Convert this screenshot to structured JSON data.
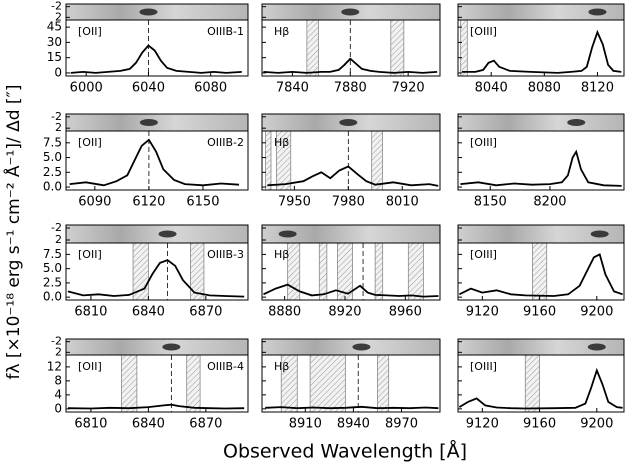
{
  "xlabel": "Observed Wavelength [Å]",
  "ylabel": "fλ [×10⁻¹⁸ erg s⁻¹ cm⁻² Å⁻¹]/ Δd [″]",
  "chart_data": [
    {
      "type": "line",
      "line_label": "[OII]",
      "id_label": "OIIIB-1",
      "xlim": [
        5987,
        6104
      ],
      "xticks": [
        6000,
        6040,
        6080
      ],
      "ylim": [
        -3,
        52
      ],
      "yticks": [
        0,
        15,
        30,
        45
      ],
      "ytick_labels": true,
      "strip_ylim": [
        -3,
        3
      ],
      "strip_yticks": [
        -2,
        2
      ],
      "shaded": [],
      "dashed": [
        6040
      ],
      "x": [
        5990,
        5998,
        6006,
        6014,
        6022,
        6028,
        6032,
        6036,
        6040,
        6044,
        6048,
        6052,
        6058,
        6066,
        6074,
        6082,
        6090,
        6100
      ],
      "values": [
        0,
        1,
        0,
        1,
        2,
        4,
        10,
        20,
        27,
        22,
        12,
        5,
        2,
        1,
        0,
        1,
        0,
        1
      ]
    },
    {
      "type": "line",
      "line_label": "Hβ",
      "xlim": [
        7819,
        7942
      ],
      "xticks": [
        7840,
        7880,
        7920
      ],
      "ylim": [
        -3,
        52
      ],
      "yticks": [
        0,
        15,
        30,
        45
      ],
      "ytick_labels": false,
      "strip_ylim": [
        -3,
        3
      ],
      "strip_yticks": [
        -2,
        2
      ],
      "shaded": [
        [
          7850,
          7858
        ],
        [
          7908,
          7917
        ]
      ],
      "dashed": [
        7880
      ],
      "x": [
        7820,
        7830,
        7840,
        7850,
        7860,
        7866,
        7872,
        7876,
        7880,
        7884,
        7888,
        7894,
        7900,
        7910,
        7920,
        7930,
        7940
      ],
      "values": [
        1,
        0,
        1,
        0,
        1,
        1,
        3,
        8,
        14,
        9,
        4,
        2,
        1,
        0,
        1,
        0,
        1
      ]
    },
    {
      "type": "line",
      "line_label": "[OIII]",
      "xlim": [
        8015,
        8140
      ],
      "xticks": [
        8040,
        8080,
        8120
      ],
      "ylim": [
        -3,
        52
      ],
      "yticks": [
        0,
        15,
        30,
        45
      ],
      "ytick_labels": false,
      "strip_ylim": [
        -3,
        3
      ],
      "strip_yticks": [
        -2,
        2
      ],
      "shaded": [
        [
          8017,
          8022
        ]
      ],
      "dashed": [],
      "x": [
        8018,
        8028,
        8034,
        8038,
        8042,
        8046,
        8054,
        8070,
        8090,
        8100,
        8108,
        8112,
        8116,
        8120,
        8124,
        8128,
        8132,
        8138
      ],
      "values": [
        1,
        1,
        3,
        10,
        12,
        6,
        2,
        1,
        0,
        1,
        2,
        6,
        25,
        40,
        28,
        8,
        2,
        1
      ]
    },
    {
      "type": "line",
      "line_label": "[OII]",
      "id_label": "OIIIB-2",
      "xlim": [
        6074,
        6175
      ],
      "xticks": [
        6090,
        6120,
        6150
      ],
      "ylim": [
        -0.5,
        9.5
      ],
      "yticks": [
        {
          "value": 0,
          "label": "0.0"
        },
        2.5,
        {
          "value": 5,
          "label": "5.0"
        },
        7.5
      ],
      "ytick_labels": true,
      "strip_ylim": [
        -3,
        3
      ],
      "strip_yticks": [
        -2,
        2
      ],
      "shaded": [],
      "dashed": [
        6120
      ],
      "x": [
        6076,
        6085,
        6095,
        6102,
        6108,
        6112,
        6116,
        6120,
        6124,
        6128,
        6134,
        6140,
        6150,
        6160,
        6170
      ],
      "values": [
        0.5,
        0.8,
        0.3,
        1.0,
        2.0,
        4.5,
        7.0,
        8.0,
        6.0,
        3.0,
        1.2,
        0.5,
        0.3,
        0.6,
        0.4
      ]
    },
    {
      "type": "line",
      "line_label": "Hβ",
      "xlim": [
        7932,
        8031
      ],
      "xticks": [
        7950,
        7980,
        8010
      ],
      "ylim": [
        -0.5,
        9.5
      ],
      "yticks": [
        {
          "value": 0,
          "label": "0.0"
        },
        2.5,
        {
          "value": 5,
          "label": "5.0"
        },
        7.5
      ],
      "ytick_labels": false,
      "strip_ylim": [
        -3,
        3
      ],
      "strip_yticks": [
        -2,
        2
      ],
      "shaded": [
        [
          7934,
          7937
        ],
        [
          7940,
          7948
        ],
        [
          7993,
          7999
        ]
      ],
      "dashed": [
        7980
      ],
      "x": [
        7935,
        7945,
        7955,
        7960,
        7965,
        7970,
        7975,
        7980,
        7985,
        7990,
        7995,
        8005,
        8015,
        8025,
        8030
      ],
      "values": [
        0.3,
        0.5,
        1.0,
        1.8,
        2.5,
        1.5,
        2.8,
        3.5,
        2.2,
        1.0,
        0.4,
        0.8,
        0.3,
        0.5,
        0.2
      ]
    },
    {
      "type": "line",
      "line_label": "[OIII]",
      "xlim": [
        8123,
        8262
      ],
      "xticks": [
        8150,
        8200
      ],
      "ylim": [
        -0.5,
        9.5
      ],
      "yticks": [
        {
          "value": 0,
          "label": "0.0"
        },
        2.5,
        {
          "value": 5,
          "label": "5.0"
        },
        7.5
      ],
      "ytick_labels": false,
      "strip_ylim": [
        -3,
        3
      ],
      "strip_yticks": [
        -2,
        2
      ],
      "shaded": [],
      "dashed": [],
      "x": [
        8125,
        8140,
        8155,
        8170,
        8185,
        8200,
        8210,
        8215,
        8219,
        8222,
        8226,
        8232,
        8245,
        8260
      ],
      "values": [
        0.5,
        0.8,
        0.3,
        0.6,
        0.4,
        0.5,
        0.8,
        2.0,
        5.0,
        6.0,
        3.0,
        0.8,
        0.3,
        0.2
      ]
    },
    {
      "type": "line",
      "line_label": "[OII]",
      "id_label": "OIIIB-3",
      "xlim": [
        6797,
        6892
      ],
      "xticks": [
        6810,
        6840,
        6870
      ],
      "ylim": [
        -0.5,
        9.5
      ],
      "yticks": [
        {
          "value": 0,
          "label": "0.0"
        },
        2.5,
        {
          "value": 5,
          "label": "5.0"
        },
        7.5
      ],
      "ytick_labels": true,
      "strip_ylim": [
        -3,
        3
      ],
      "strip_yticks": [
        -2,
        2
      ],
      "shaded": [
        [
          6832,
          6840
        ],
        [
          6862,
          6869
        ]
      ],
      "dashed": [
        6850
      ],
      "x": [
        6798,
        6806,
        6814,
        6822,
        6830,
        6838,
        6842,
        6846,
        6850,
        6854,
        6858,
        6864,
        6872,
        6880,
        6890
      ],
      "values": [
        1.0,
        0.3,
        0.5,
        0.2,
        0.4,
        1.5,
        4.0,
        6.0,
        6.5,
        5.5,
        3.0,
        0.8,
        0.3,
        0.2,
        0.1
      ]
    },
    {
      "type": "line",
      "line_label": "Hβ",
      "xlim": [
        8865,
        8983
      ],
      "xticks": [
        8880,
        8920,
        8960
      ],
      "ylim": [
        -0.5,
        9.5
      ],
      "yticks": [
        {
          "value": 0,
          "label": "0.0"
        },
        2.5,
        {
          "value": 5,
          "label": "5.0"
        },
        7.5
      ],
      "ytick_labels": false,
      "strip_ylim": [
        -3,
        3
      ],
      "strip_yticks": [
        -2,
        2
      ],
      "shaded": [
        [
          8882,
          8890
        ],
        [
          8903,
          8908
        ],
        [
          8915,
          8925
        ],
        [
          8940,
          8945
        ],
        [
          8962,
          8972
        ]
      ],
      "dashed": [
        8932
      ],
      "x": [
        8866,
        8874,
        8882,
        8890,
        8898,
        8906,
        8914,
        8922,
        8930,
        8935,
        8940,
        8948,
        8956,
        8964,
        8972,
        8982
      ],
      "values": [
        0.5,
        1.5,
        2.2,
        1.0,
        0.3,
        0.5,
        1.2,
        0.6,
        2.0,
        0.8,
        0.4,
        0.3,
        0.2,
        0.3,
        0.1,
        0.2
      ]
    },
    {
      "type": "line",
      "line_label": "[OIII]",
      "xlim": [
        9103,
        9219
      ],
      "xticks": [
        9120,
        9160,
        9200
      ],
      "ylim": [
        -0.5,
        9.5
      ],
      "yticks": [
        {
          "value": 0,
          "label": "0.0"
        },
        2.5,
        {
          "value": 5,
          "label": "5.0"
        },
        7.5
      ],
      "ytick_labels": false,
      "strip_ylim": [
        -3,
        3
      ],
      "strip_yticks": [
        -2,
        2
      ],
      "shaded": [
        [
          9155,
          9165
        ]
      ],
      "dashed": [],
      "x": [
        9104,
        9112,
        9120,
        9130,
        9140,
        9150,
        9170,
        9180,
        9188,
        9194,
        9198,
        9202,
        9206,
        9212,
        9218
      ],
      "values": [
        0.5,
        1.5,
        0.8,
        1.2,
        0.5,
        0.3,
        0.2,
        0.5,
        2.0,
        5.0,
        7.0,
        7.5,
        4.0,
        1.0,
        0.5
      ]
    },
    {
      "type": "line",
      "line_label": "[OII]",
      "id_label": "OIIIB-4",
      "xlim": [
        6797,
        6892
      ],
      "xticks": [
        6810,
        6840,
        6870
      ],
      "ylim": [
        -0.9,
        15.4
      ],
      "yticks": [
        0,
        4,
        8,
        12
      ],
      "ytick_labels": true,
      "strip_ylim": [
        -3,
        3
      ],
      "strip_yticks": [
        -2,
        2
      ],
      "shaded": [
        [
          6826,
          6834
        ],
        [
          6860,
          6867
        ]
      ],
      "dashed": [
        6852
      ],
      "x": [
        6798,
        6810,
        6820,
        6830,
        6840,
        6848,
        6852,
        6856,
        6864,
        6872,
        6880,
        6890
      ],
      "values": [
        0.2,
        0.1,
        0.3,
        0.2,
        0.5,
        1.0,
        1.2,
        0.8,
        0.3,
        0.2,
        0.1,
        0.2
      ]
    },
    {
      "type": "line",
      "line_label": "Hβ",
      "xlim": [
        8883,
        8994
      ],
      "xticks": [
        8910,
        8940,
        8970
      ],
      "ylim": [
        -0.9,
        15.4
      ],
      "yticks": [
        0,
        4,
        8,
        12
      ],
      "ytick_labels": false,
      "strip_ylim": [
        -3,
        3
      ],
      "strip_yticks": [
        -2,
        2
      ],
      "shaded": [
        [
          8895,
          8905
        ],
        [
          8913,
          8935
        ],
        [
          8955,
          8962
        ]
      ],
      "dashed": [
        8943
      ],
      "x": [
        8885,
        8895,
        8905,
        8915,
        8925,
        8935,
        8945,
        8955,
        8965,
        8975,
        8985,
        8993
      ],
      "values": [
        0.3,
        0.5,
        0.2,
        0.4,
        0.2,
        0.3,
        0.6,
        0.2,
        0.3,
        0.2,
        0.4,
        0.2
      ]
    },
    {
      "type": "line",
      "line_label": "[OIII]",
      "xlim": [
        9103,
        9219
      ],
      "xticks": [
        9120,
        9160,
        9200
      ],
      "ylim": [
        -0.9,
        15.4
      ],
      "yticks": [
        0,
        4,
        8,
        12
      ],
      "ytick_labels": false,
      "strip_ylim": [
        -3,
        3
      ],
      "strip_yticks": [
        -2,
        2
      ],
      "shaded": [
        [
          9150,
          9160
        ]
      ],
      "dashed": [],
      "x": [
        9104,
        9110,
        9116,
        9122,
        9130,
        9140,
        9150,
        9170,
        9185,
        9192,
        9196,
        9200,
        9204,
        9208,
        9214,
        9218
      ],
      "values": [
        0.5,
        2.0,
        3.0,
        1.0,
        0.4,
        0.2,
        0.1,
        0.2,
        0.3,
        1.5,
        6.0,
        11.0,
        7.0,
        2.0,
        0.5,
        0.3
      ]
    }
  ]
}
